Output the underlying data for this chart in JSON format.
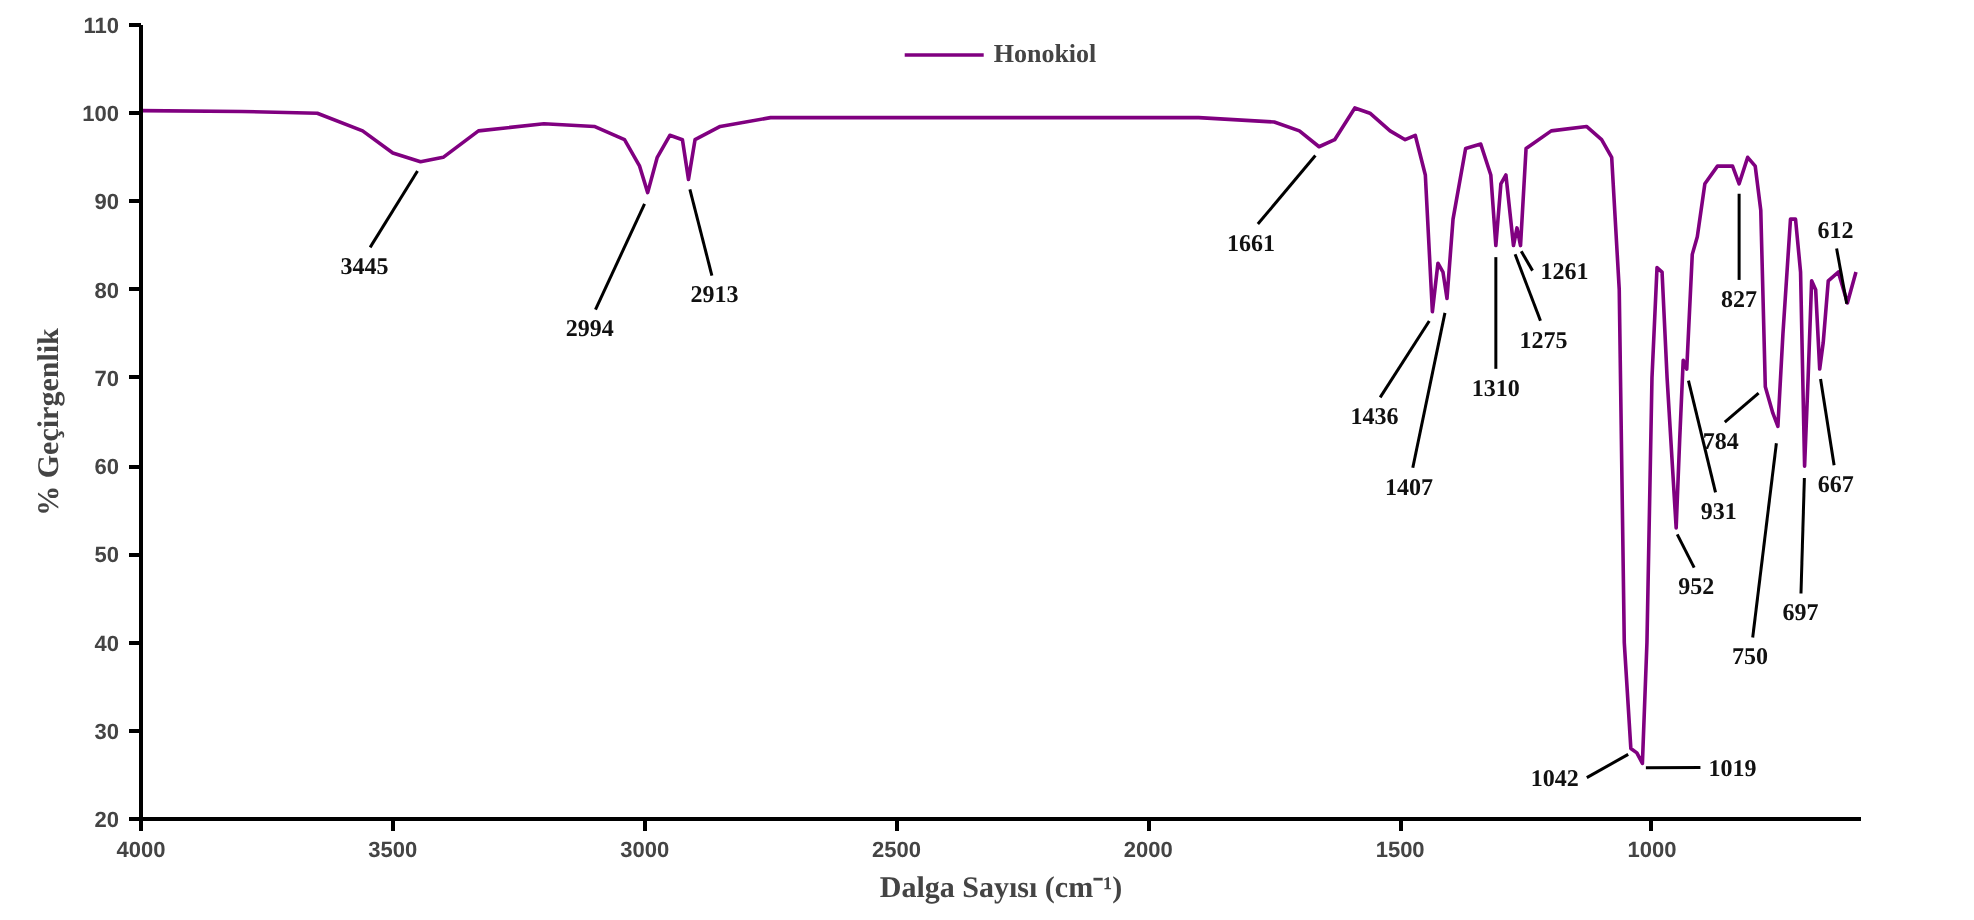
{
  "chart_data": {
    "type": "line",
    "xlabel": "Dalga Sayısı (cm⁻¹)",
    "ylabel": "% Geçirgenlik",
    "xlim": [
      4000,
      585
    ],
    "ylim": [
      20,
      110
    ],
    "xticks": [
      4000,
      3500,
      3000,
      2500,
      2000,
      1500,
      1000
    ],
    "yticks": [
      20,
      30,
      40,
      50,
      60,
      70,
      80,
      90,
      100,
      110
    ],
    "grid": false,
    "legend": "top",
    "marker": "none",
    "line_style": "solid",
    "series": [
      {
        "name": "Honokiol",
        "color": "#800080",
        "x": [
          4000,
          3800,
          3650,
          3560,
          3500,
          3445,
          3400,
          3330,
          3200,
          3100,
          3040,
          3010,
          2994,
          2975,
          2950,
          2925,
          2913,
          2900,
          2850,
          2750,
          2500,
          2200,
          1900,
          1750,
          1700,
          1661,
          1630,
          1590,
          1560,
          1520,
          1490,
          1470,
          1450,
          1436,
          1425,
          1415,
          1407,
          1395,
          1370,
          1340,
          1320,
          1310,
          1300,
          1290,
          1275,
          1268,
          1261,
          1250,
          1200,
          1130,
          1100,
          1080,
          1065,
          1055,
          1042,
          1030,
          1019,
          1010,
          1000,
          990,
          980,
          970,
          952,
          945,
          938,
          931,
          920,
          910,
          895,
          870,
          840,
          827,
          810,
          795,
          784,
          775,
          760,
          750,
          740,
          725,
          715,
          705,
          697,
          690,
          683,
          675,
          667,
          660,
          650,
          630,
          612,
          595
        ],
        "values": [
          100.3,
          100.2,
          100,
          98,
          95.5,
          94.5,
          95,
          98,
          98.8,
          98.5,
          97,
          94,
          91,
          95,
          97.5,
          97,
          92.5,
          97,
          98.5,
          99.5,
          99.5,
          99.5,
          99.5,
          99,
          98,
          96.2,
          97,
          100.6,
          100,
          98,
          97,
          97.5,
          93,
          77.5,
          83,
          82,
          79,
          88,
          96,
          96.5,
          93,
          85,
          92,
          93,
          85,
          87,
          85,
          96,
          98,
          98.5,
          97,
          95,
          80,
          40,
          28,
          27.5,
          26.3,
          40,
          70,
          82.5,
          82,
          70,
          53,
          63,
          72,
          71,
          84,
          86,
          92,
          94,
          94,
          92,
          95,
          94,
          89,
          69,
          66,
          64.5,
          75,
          88,
          88,
          82,
          60,
          70,
          81,
          80,
          71,
          74,
          81,
          82,
          78.5,
          82
        ]
      }
    ],
    "annotations": [
      {
        "text": "3445",
        "x": 3445,
        "y": 94.5
      },
      {
        "text": "2994",
        "x": 2994,
        "y": 91
      },
      {
        "text": "2913",
        "x": 2913,
        "y": 92.5
      },
      {
        "text": "1661",
        "x": 1661,
        "y": 96.2
      },
      {
        "text": "1436",
        "x": 1436,
        "y": 77.5
      },
      {
        "text": "1407",
        "x": 1407,
        "y": 79
      },
      {
        "text": "1310",
        "x": 1310,
        "y": 85
      },
      {
        "text": "1275",
        "x": 1275,
        "y": 85
      },
      {
        "text": "1261",
        "x": 1261,
        "y": 85
      },
      {
        "text": "1042",
        "x": 1042,
        "y": 28
      },
      {
        "text": "1019",
        "x": 1019,
        "y": 26.3
      },
      {
        "text": "952",
        "x": 952,
        "y": 53
      },
      {
        "text": "931",
        "x": 931,
        "y": 71
      },
      {
        "text": "827",
        "x": 827,
        "y": 92
      },
      {
        "text": "784",
        "x": 784,
        "y": 69
      },
      {
        "text": "750",
        "x": 750,
        "y": 64.5
      },
      {
        "text": "697",
        "x": 697,
        "y": 60
      },
      {
        "text": "667",
        "x": 667,
        "y": 71
      },
      {
        "text": "612",
        "x": 612,
        "y": 78.5
      }
    ]
  }
}
